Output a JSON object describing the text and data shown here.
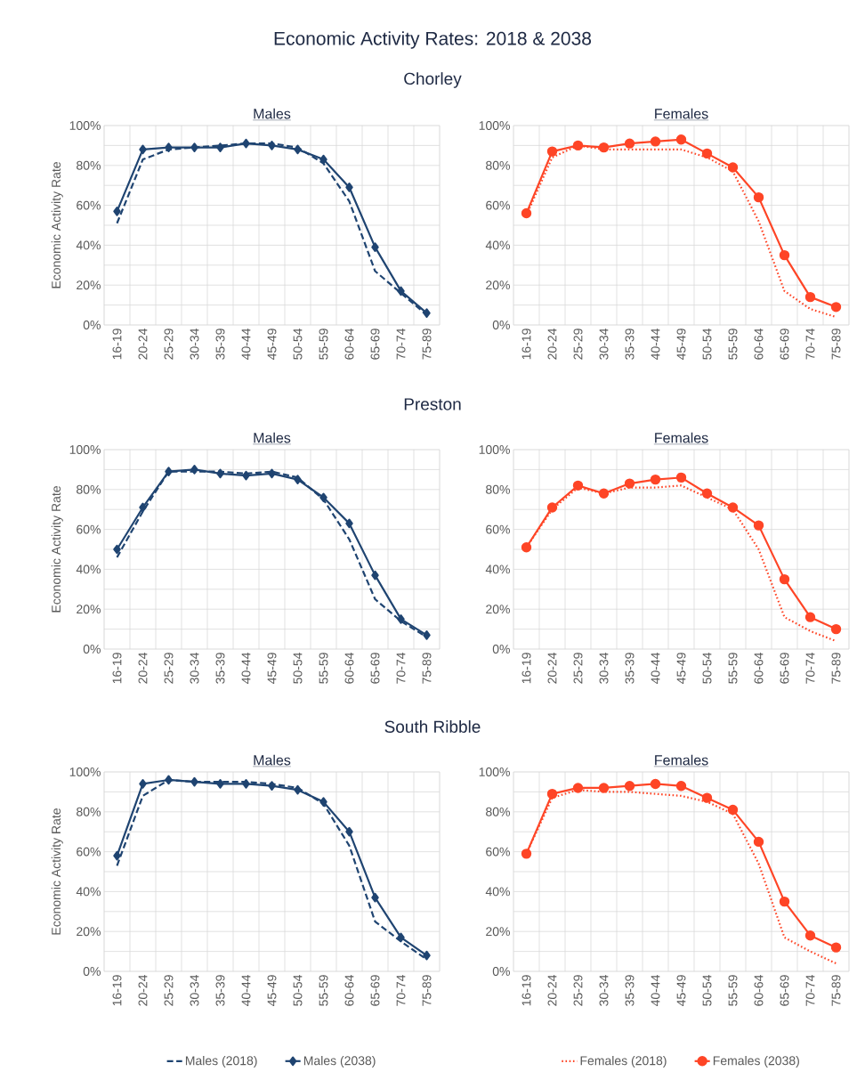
{
  "chart_data": [
    {
      "type": "line",
      "title": "Males",
      "subtitle": "Chorley",
      "annotations": [
        "Economic Activity Rates: 2018 & 2038"
      ],
      "ylabel": "Economic Activity Rate",
      "categories": [
        "16-19",
        "20-24",
        "25-29",
        "30-34",
        "35-39",
        "40-44",
        "45-49",
        "50-54",
        "55-59",
        "60-64",
        "65-69",
        "70-74",
        "75-89"
      ],
      "ylim": [
        0,
        100
      ],
      "yticks": [
        {
          "value": 0,
          "label": "0%"
        },
        {
          "value": 20,
          "label": "20%"
        },
        {
          "value": 40,
          "label": "40%"
        },
        {
          "value": 60,
          "label": "60%"
        },
        {
          "value": 80,
          "label": "80%"
        },
        {
          "value": 100,
          "label": "100%"
        }
      ],
      "grid": true,
      "series": [
        {
          "color": "#1f4471",
          "line_style": "dashed",
          "marker": "none",
          "values": [
            51,
            83,
            88,
            89,
            90,
            91,
            91,
            89,
            81,
            62,
            27,
            16,
            5
          ]
        },
        {
          "color": "#1f4471",
          "line_style": "solid",
          "marker": "diamond",
          "values": [
            57,
            88,
            89,
            89,
            89,
            91,
            90,
            88,
            83,
            69,
            39,
            17,
            6
          ]
        }
      ]
    },
    {
      "type": "line",
      "title": "Females",
      "categories": [
        "16-19",
        "20-24",
        "25-29",
        "30-34",
        "35-39",
        "40-44",
        "45-49",
        "50-54",
        "55-59",
        "60-64",
        "65-69",
        "70-74",
        "75-89"
      ],
      "ylim": [
        0,
        100
      ],
      "yticks": [
        {
          "value": 0,
          "label": "0%"
        },
        {
          "value": 20,
          "label": "20%"
        },
        {
          "value": 40,
          "label": "40%"
        },
        {
          "value": 60,
          "label": "60%"
        },
        {
          "value": 80,
          "label": "80%"
        },
        {
          "value": 100,
          "label": "100%"
        }
      ],
      "grid": true,
      "series": [
        {
          "color": "#fe4526",
          "line_style": "dotted",
          "marker": "none",
          "values": [
            55,
            84,
            90,
            88,
            88,
            88,
            88,
            84,
            77,
            52,
            17,
            8,
            4
          ]
        },
        {
          "color": "#fe4526",
          "line_style": "solid",
          "marker": "circle",
          "values": [
            56,
            87,
            90,
            89,
            91,
            92,
            93,
            86,
            79,
            64,
            35,
            14,
            9
          ]
        }
      ]
    },
    {
      "type": "line",
      "title": "Males",
      "subtitle": "Preston",
      "ylabel": "Economic Activity Rate",
      "categories": [
        "16-19",
        "20-24",
        "25-29",
        "30-34",
        "35-39",
        "40-44",
        "45-49",
        "50-54",
        "55-59",
        "60-64",
        "65-69",
        "70-74",
        "75-89"
      ],
      "ylim": [
        0,
        100
      ],
      "yticks": [
        {
          "value": 0,
          "label": "0%"
        },
        {
          "value": 20,
          "label": "20%"
        },
        {
          "value": 40,
          "label": "40%"
        },
        {
          "value": 60,
          "label": "60%"
        },
        {
          "value": 80,
          "label": "80%"
        },
        {
          "value": 100,
          "label": "100%"
        }
      ],
      "grid": true,
      "series": [
        {
          "color": "#1f4471",
          "line_style": "dashed",
          "marker": "none",
          "values": [
            46,
            69,
            89,
            89,
            89,
            88,
            89,
            86,
            75,
            55,
            25,
            14,
            6
          ]
        },
        {
          "color": "#1f4471",
          "line_style": "solid",
          "marker": "diamond",
          "values": [
            50,
            71,
            89,
            90,
            88,
            87,
            88,
            85,
            76,
            63,
            37,
            15,
            7
          ]
        }
      ]
    },
    {
      "type": "line",
      "title": "Females",
      "categories": [
        "16-19",
        "20-24",
        "25-29",
        "30-34",
        "35-39",
        "40-44",
        "45-49",
        "50-54",
        "55-59",
        "60-64",
        "65-69",
        "70-74",
        "75-89"
      ],
      "ylim": [
        0,
        100
      ],
      "yticks": [
        {
          "value": 0,
          "label": "0%"
        },
        {
          "value": 20,
          "label": "20%"
        },
        {
          "value": 40,
          "label": "40%"
        },
        {
          "value": 60,
          "label": "60%"
        },
        {
          "value": 80,
          "label": "80%"
        },
        {
          "value": 100,
          "label": "100%"
        }
      ],
      "grid": true,
      "series": [
        {
          "color": "#fe4526",
          "line_style": "dotted",
          "marker": "none",
          "values": [
            51,
            70,
            81,
            78,
            81,
            81,
            82,
            76,
            70,
            50,
            16,
            9,
            4
          ]
        },
        {
          "color": "#fe4526",
          "line_style": "solid",
          "marker": "circle",
          "values": [
            51,
            71,
            82,
            78,
            83,
            85,
            86,
            78,
            71,
            62,
            35,
            16,
            10
          ]
        }
      ]
    },
    {
      "type": "line",
      "title": "Males",
      "subtitle": "South Ribble",
      "ylabel": "Economic Activity Rate",
      "legend": "bottom",
      "categories": [
        "16-19",
        "20-24",
        "25-29",
        "30-34",
        "35-39",
        "40-44",
        "45-49",
        "50-54",
        "55-59",
        "60-64",
        "65-69",
        "70-74",
        "75-89"
      ],
      "ylim": [
        0,
        100
      ],
      "yticks": [
        {
          "value": 0,
          "label": "0%"
        },
        {
          "value": 20,
          "label": "20%"
        },
        {
          "value": 40,
          "label": "40%"
        },
        {
          "value": 60,
          "label": "60%"
        },
        {
          "value": 80,
          "label": "80%"
        },
        {
          "value": 100,
          "label": "100%"
        }
      ],
      "grid": true,
      "series": [
        {
          "name": "Males (2018)",
          "color": "#1f4471",
          "line_style": "dashed",
          "marker": "none",
          "values": [
            53,
            88,
            96,
            95,
            95,
            95,
            94,
            92,
            84,
            63,
            25,
            15,
            6
          ]
        },
        {
          "name": "Males (2038)",
          "color": "#1f4471",
          "line_style": "solid",
          "marker": "diamond",
          "values": [
            58,
            94,
            96,
            95,
            94,
            94,
            93,
            91,
            85,
            70,
            37,
            17,
            8
          ]
        }
      ]
    },
    {
      "type": "line",
      "title": "Females",
      "legend": "bottom",
      "categories": [
        "16-19",
        "20-24",
        "25-29",
        "30-34",
        "35-39",
        "40-44",
        "45-49",
        "50-54",
        "55-59",
        "60-64",
        "65-69",
        "70-74",
        "75-89"
      ],
      "ylim": [
        0,
        100
      ],
      "yticks": [
        {
          "value": 0,
          "label": "0%"
        },
        {
          "value": 20,
          "label": "20%"
        },
        {
          "value": 40,
          "label": "40%"
        },
        {
          "value": 60,
          "label": "60%"
        },
        {
          "value": 80,
          "label": "80%"
        },
        {
          "value": 100,
          "label": "100%"
        }
      ],
      "grid": true,
      "series": [
        {
          "name": "Females (2018)",
          "color": "#fe4526",
          "line_style": "dotted",
          "marker": "none",
          "values": [
            59,
            87,
            91,
            90,
            90,
            89,
            88,
            85,
            79,
            54,
            17,
            10,
            4
          ]
        },
        {
          "name": "Females (2038)",
          "color": "#fe4526",
          "line_style": "solid",
          "marker": "circle",
          "values": [
            59,
            89,
            92,
            92,
            93,
            94,
            93,
            87,
            81,
            65,
            35,
            18,
            12
          ]
        }
      ]
    }
  ]
}
